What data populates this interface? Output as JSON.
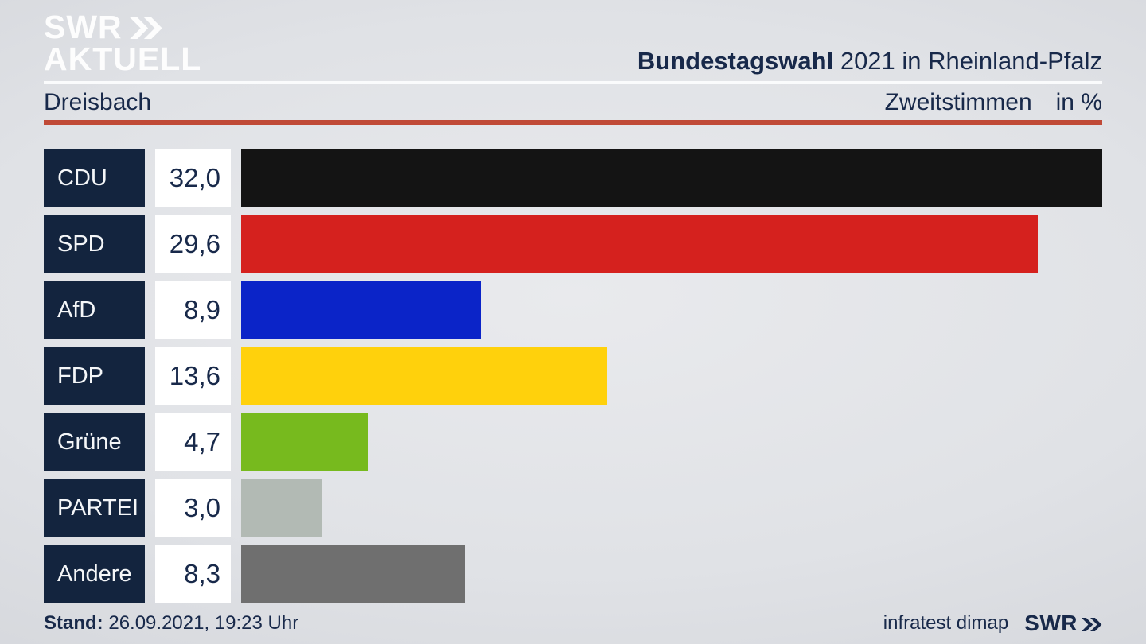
{
  "header": {
    "logo_line1": "SWR",
    "logo_line2": "AKTUELL",
    "title_bold": "Bundestagswahl",
    "title_rest": "2021 in Rheinland-Pfalz"
  },
  "subheader": {
    "region": "Dreisbach",
    "vote_type": "Zweitstimmen",
    "unit": "in %"
  },
  "chart_data": {
    "type": "bar",
    "orientation": "horizontal",
    "title": "Bundestagswahl 2021 in Rheinland-Pfalz — Dreisbach — Zweitstimmen in %",
    "categories": [
      "CDU",
      "SPD",
      "AfD",
      "FDP",
      "Grüne",
      "PARTEI",
      "Andere"
    ],
    "values": [
      32.0,
      29.6,
      8.9,
      13.6,
      4.7,
      3.0,
      8.3
    ],
    "value_labels": [
      "32,0",
      "29,6",
      "8,9",
      "13,6",
      "4,7",
      "3,0",
      "8,3"
    ],
    "bar_colors": [
      "#141414",
      "#d5211e",
      "#0b24c8",
      "#ffd10c",
      "#77ba1e",
      "#b2bab4",
      "#6f6f6f"
    ],
    "xlim": [
      0,
      32.0
    ],
    "ylabel": "",
    "xlabel": "in %",
    "grid": false,
    "legend": "none"
  },
  "footer": {
    "stand_label": "Stand:",
    "stand_value": "26.09.2021, 19:23 Uhr",
    "source": "infratest dimap",
    "swr_text": "SWR"
  },
  "colors": {
    "navy_box": "#13243e",
    "navy_text": "#18294a",
    "rule_red": "#c04a37",
    "rule_white": "#fafbfc",
    "logo_white": "#f3f4f6"
  }
}
